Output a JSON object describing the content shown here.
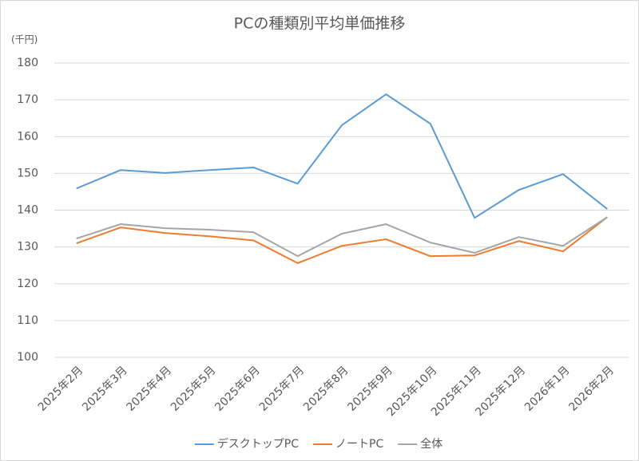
{
  "chart_data": {
    "type": "line",
    "title": "PCの種類別平均単価推移",
    "y_unit_label": "(千円)",
    "categories": [
      "2025年2月",
      "2025年3月",
      "2025年4月",
      "2025年5月",
      "2025年6月",
      "2025年7月",
      "2025年8月",
      "2025年9月",
      "2025年10月",
      "2025年11月",
      "2025年12月",
      "2026年1月",
      "2026年2月"
    ],
    "series": [
      {
        "name": "デスクトップPC",
        "color": "#5b9bd5",
        "values": [
          145.9,
          150.9,
          150.1,
          150.9,
          151.6,
          147.2,
          163.1,
          171.5,
          163.5,
          137.9,
          145.5,
          149.8,
          140.3
        ]
      },
      {
        "name": "ノートPC",
        "color": "#ed7d31",
        "values": [
          131.0,
          135.3,
          133.8,
          132.9,
          131.8,
          125.6,
          130.3,
          132.1,
          127.5,
          127.7,
          131.6,
          128.8,
          138.1
        ]
      },
      {
        "name": "全体",
        "color": "#a5a5a5",
        "values": [
          132.3,
          136.2,
          135.1,
          134.7,
          134.0,
          127.5,
          133.6,
          136.2,
          131.2,
          128.4,
          132.7,
          130.3,
          138.1
        ]
      }
    ],
    "ylim": [
      100,
      180
    ],
    "yticks": [
      100,
      110,
      120,
      130,
      140,
      150,
      160,
      170,
      180
    ],
    "grid": true,
    "legend_position": "bottom"
  }
}
